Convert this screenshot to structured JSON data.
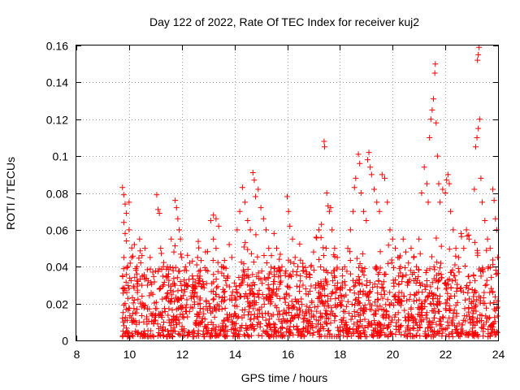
{
  "chart_data": {
    "type": "scatter",
    "title": "Day 122 of 2022, Rate Of TEC Index for receiver kuj2",
    "xlabel": "GPS time / hours",
    "ylabel": "ROTI / TECUs",
    "xlim": [
      8,
      24
    ],
    "ylim": [
      0,
      0.16
    ],
    "x_ticks": [
      8,
      10,
      12,
      14,
      16,
      18,
      20,
      22,
      24
    ],
    "x_tick_labels": [
      "8",
      "10",
      "12",
      "14",
      "16",
      "18",
      "20",
      "22",
      "24"
    ],
    "y_ticks": [
      0,
      0.02,
      0.04,
      0.06,
      0.08,
      0.1,
      0.12,
      0.14,
      0.16
    ],
    "y_tick_labels": [
      "0",
      "0.02",
      "0.04",
      "0.06",
      "0.08",
      "0.1",
      "0.12",
      "0.14",
      "0.16"
    ],
    "grid": true,
    "marker": "plus",
    "color": "#ff0000",
    "series": [
      {
        "name": "ROTI",
        "points": [
          [
            9.75,
            0.083
          ],
          [
            9.8,
            0.079
          ],
          [
            9.85,
            0.074
          ],
          [
            9.9,
            0.069
          ],
          [
            9.8,
            0.064
          ],
          [
            9.85,
            0.058
          ],
          [
            9.9,
            0.054
          ],
          [
            9.8,
            0.045
          ],
          [
            9.75,
            0.035
          ],
          [
            9.8,
            0.028
          ],
          [
            9.85,
            0.02
          ],
          [
            9.75,
            0.012
          ],
          [
            9.8,
            0.008
          ],
          [
            9.9,
            0.005
          ],
          [
            10.0,
            0.075
          ],
          [
            10.0,
            0.06
          ],
          [
            10.1,
            0.045
          ],
          [
            10.2,
            0.052
          ],
          [
            10.3,
            0.04
          ],
          [
            10.4,
            0.055
          ],
          [
            10.5,
            0.035
          ],
          [
            10.6,
            0.05
          ],
          [
            10.7,
            0.03
          ],
          [
            10.8,
            0.045
          ],
          [
            10.9,
            0.025
          ],
          [
            11.05,
            0.079
          ],
          [
            11.1,
            0.071
          ],
          [
            11.15,
            0.069
          ],
          [
            11.2,
            0.05
          ],
          [
            11.3,
            0.04
          ],
          [
            11.4,
            0.035
          ],
          [
            11.5,
            0.03
          ],
          [
            11.6,
            0.055
          ],
          [
            11.7,
            0.048
          ],
          [
            11.75,
            0.076
          ],
          [
            11.8,
            0.072
          ],
          [
            11.85,
            0.066
          ],
          [
            11.9,
            0.06
          ],
          [
            11.95,
            0.055
          ],
          [
            12.0,
            0.045
          ],
          [
            12.1,
            0.038
          ],
          [
            12.2,
            0.03
          ],
          [
            12.3,
            0.042
          ],
          [
            12.4,
            0.035
          ],
          [
            12.5,
            0.028
          ],
          [
            12.6,
            0.045
          ],
          [
            12.7,
            0.038
          ],
          [
            12.8,
            0.032
          ],
          [
            12.9,
            0.048
          ],
          [
            13.1,
            0.065
          ],
          [
            13.2,
            0.068
          ],
          [
            13.3,
            0.066
          ],
          [
            13.4,
            0.062
          ],
          [
            13.2,
            0.055
          ],
          [
            13.3,
            0.05
          ],
          [
            13.5,
            0.04
          ],
          [
            13.6,
            0.035
          ],
          [
            13.7,
            0.03
          ],
          [
            13.8,
            0.052
          ],
          [
            13.9,
            0.045
          ],
          [
            14.1,
            0.06
          ],
          [
            14.2,
            0.07
          ],
          [
            14.3,
            0.083
          ],
          [
            14.4,
            0.075
          ],
          [
            14.5,
            0.065
          ],
          [
            14.6,
            0.06
          ],
          [
            14.7,
            0.091
          ],
          [
            14.75,
            0.087
          ],
          [
            14.8,
            0.078
          ],
          [
            14.9,
            0.082
          ],
          [
            15.0,
            0.072
          ],
          [
            15.1,
            0.066
          ],
          [
            15.2,
            0.06
          ],
          [
            15.3,
            0.05
          ],
          [
            15.4,
            0.046
          ],
          [
            15.5,
            0.058
          ],
          [
            15.6,
            0.05
          ],
          [
            15.7,
            0.044
          ],
          [
            15.8,
            0.04
          ],
          [
            16.0,
            0.078
          ],
          [
            16.05,
            0.07
          ],
          [
            16.1,
            0.062
          ],
          [
            16.2,
            0.055
          ],
          [
            16.3,
            0.045
          ],
          [
            16.4,
            0.04
          ],
          [
            16.5,
            0.035
          ],
          [
            16.6,
            0.03
          ],
          [
            16.7,
            0.028
          ],
          [
            16.8,
            0.025
          ],
          [
            16.9,
            0.04
          ],
          [
            17.0,
            0.048
          ],
          [
            17.1,
            0.056
          ],
          [
            17.2,
            0.06
          ],
          [
            17.3,
            0.063
          ],
          [
            17.4,
            0.108
          ],
          [
            17.42,
            0.105
          ],
          [
            17.5,
            0.08
          ],
          [
            17.55,
            0.073
          ],
          [
            17.6,
            0.07
          ],
          [
            17.65,
            0.072
          ],
          [
            17.7,
            0.06
          ],
          [
            17.8,
            0.05
          ],
          [
            17.9,
            0.045
          ],
          [
            18.1,
            0.035
          ],
          [
            18.2,
            0.03
          ],
          [
            18.3,
            0.05
          ],
          [
            18.4,
            0.06
          ],
          [
            18.5,
            0.07
          ],
          [
            18.55,
            0.083
          ],
          [
            18.6,
            0.088
          ],
          [
            18.7,
            0.101
          ],
          [
            18.75,
            0.096
          ],
          [
            18.8,
            0.08
          ],
          [
            18.9,
            0.07
          ],
          [
            19.0,
            0.065
          ],
          [
            19.05,
            0.098
          ],
          [
            19.1,
            0.102
          ],
          [
            19.15,
            0.094
          ],
          [
            19.2,
            0.09
          ],
          [
            19.3,
            0.082
          ],
          [
            19.4,
            0.075
          ],
          [
            19.5,
            0.07
          ],
          [
            19.6,
            0.09
          ],
          [
            19.7,
            0.088
          ],
          [
            19.8,
            0.075
          ],
          [
            19.9,
            0.06
          ],
          [
            20.0,
            0.055
          ],
          [
            20.1,
            0.05
          ],
          [
            20.2,
            0.045
          ],
          [
            20.3,
            0.04
          ],
          [
            20.4,
            0.055
          ],
          [
            20.5,
            0.048
          ],
          [
            20.6,
            0.042
          ],
          [
            20.7,
            0.05
          ],
          [
            20.8,
            0.045
          ],
          [
            20.9,
            0.04
          ],
          [
            21.0,
            0.055
          ],
          [
            21.1,
            0.08
          ],
          [
            21.2,
            0.094
          ],
          [
            21.3,
            0.085
          ],
          [
            21.35,
            0.075
          ],
          [
            21.4,
            0.11
          ],
          [
            21.45,
            0.12
          ],
          [
            21.5,
            0.125
          ],
          [
            21.55,
            0.131
          ],
          [
            21.6,
            0.145
          ],
          [
            21.62,
            0.15
          ],
          [
            21.65,
            0.118
          ],
          [
            21.7,
            0.1
          ],
          [
            21.75,
            0.085
          ],
          [
            21.8,
            0.075
          ],
          [
            21.9,
            0.082
          ],
          [
            22.0,
            0.08
          ],
          [
            22.05,
            0.087
          ],
          [
            22.1,
            0.09
          ],
          [
            22.15,
            0.085
          ],
          [
            22.2,
            0.07
          ],
          [
            22.3,
            0.06
          ],
          [
            22.4,
            0.05
          ],
          [
            22.5,
            0.045
          ],
          [
            22.6,
            0.058
          ],
          [
            22.7,
            0.05
          ],
          [
            22.8,
            0.06
          ],
          [
            22.9,
            0.055
          ],
          [
            23.1,
            0.082
          ],
          [
            23.15,
            0.105
          ],
          [
            23.2,
            0.11
          ],
          [
            23.25,
            0.115
          ],
          [
            23.3,
            0.12
          ],
          [
            23.22,
            0.152
          ],
          [
            23.25,
            0.155
          ],
          [
            23.28,
            0.159
          ],
          [
            23.35,
            0.088
          ],
          [
            23.4,
            0.075
          ],
          [
            23.5,
            0.065
          ],
          [
            23.6,
            0.055
          ],
          [
            23.7,
            0.05
          ],
          [
            23.8,
            0.082
          ],
          [
            23.85,
            0.076
          ],
          [
            23.9,
            0.066
          ],
          [
            23.95,
            0.06
          ],
          [
            23.98,
            0.045
          ]
        ],
        "dense_band": {
          "x_start": 9.75,
          "x_end": 23.98,
          "y_min": 0.002,
          "y_max": 0.04,
          "count": 1800
        }
      }
    ]
  }
}
